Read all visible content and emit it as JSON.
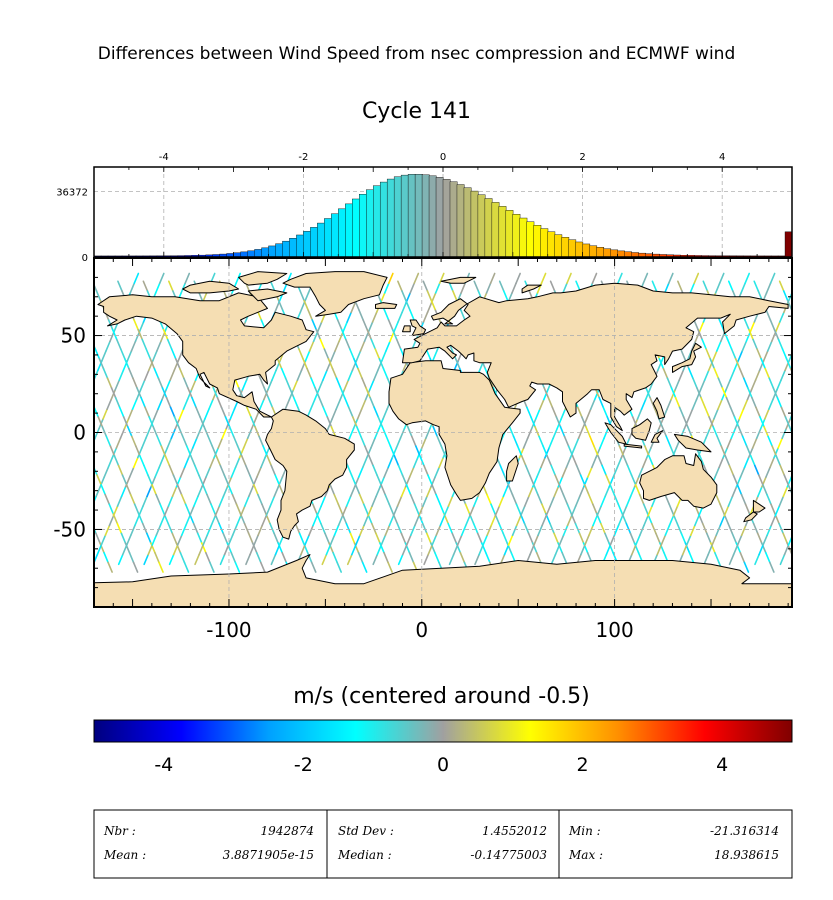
{
  "suptitle": "Differences between Wind Speed from nsec compression and ECMWF wind",
  "title": "Cycle 141",
  "colorbar": {
    "label": "m/s (centered around -0.5)",
    "ticks": [
      "-4",
      "-2",
      "0",
      "2",
      "4"
    ],
    "colors": [
      "#00007f",
      "#0000ff",
      "#00a0ff",
      "#00ffff",
      "#a0a0a0",
      "#ffff00",
      "#ff9000",
      "#ff0000",
      "#800000"
    ]
  },
  "histogram": {
    "x_ticks": [
      "-4",
      "-2",
      "0",
      "2",
      "4"
    ],
    "y_ticks": [
      "0",
      "36372"
    ]
  },
  "map": {
    "x_ticks": [
      "-100",
      "0",
      "100"
    ],
    "y_ticks": [
      "50",
      "0",
      "-50"
    ],
    "land_color": "#f5deb3"
  },
  "stats": [
    {
      "label": "Nbr :",
      "value": "1942874"
    },
    {
      "label": "Mean :",
      "value": "3.8871905e-15"
    },
    {
      "label": "Std Dev :",
      "value": "1.4552012"
    },
    {
      "label": "Median :",
      "value": "-0.14775003"
    },
    {
      "label": "Min :",
      "value": "-21.316314"
    },
    {
      "label": "Max :",
      "value": "18.938615"
    }
  ],
  "chart_data": [
    {
      "type": "bar",
      "title": "Cycle 141",
      "xlim": [
        -5,
        5
      ],
      "ylim": [
        0,
        50000
      ],
      "x_ticks": [
        -4,
        -2,
        0,
        2,
        4
      ],
      "y_ticks": [
        0,
        36372
      ],
      "grid": true,
      "distribution": {
        "peak_x": -0.4,
        "peak_count": 46000,
        "sigma_left": 1.0,
        "sigma_right": 1.25,
        "tail_floor": 600
      },
      "overflow_bar": {
        "x": 5,
        "count": 14000
      }
    },
    {
      "type": "scatter",
      "description_free": true,
      "xlim": [
        -170,
        192
      ],
      "ylim": [
        -90,
        90
      ],
      "x_ticks": [
        -100,
        0,
        100
      ],
      "y_ticks": [
        50,
        0,
        -50
      ],
      "grid": true,
      "value_range": [
        -5,
        5
      ]
    }
  ]
}
